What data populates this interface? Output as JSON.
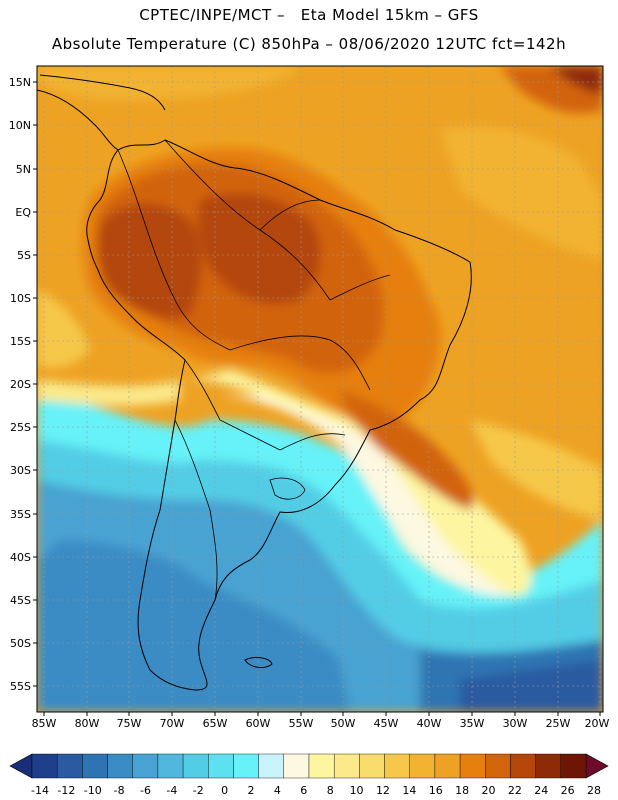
{
  "header": {
    "line1": "CPTEC/INPE/MCT –   Eta Model 15km – GFS",
    "line2": "Absolute Temperature (C) 850hPa – 08/06/2020 12UTC fct=142h"
  },
  "map": {
    "lat_labels": [
      "15N",
      "10N",
      "5N",
      "EQ",
      "5S",
      "10S",
      "15S",
      "20S",
      "25S",
      "30S",
      "35S",
      "40S",
      "45S",
      "50S",
      "55S"
    ],
    "lon_labels": [
      "85W",
      "80W",
      "75W",
      "70W",
      "65W",
      "60W",
      "55W",
      "50W",
      "45W",
      "40W",
      "35W",
      "30W",
      "25W",
      "20W"
    ]
  },
  "colorbar": {
    "labels": [
      "-14",
      "-12",
      "-10",
      "-8",
      "-6",
      "-4",
      "-2",
      "0",
      "2",
      "4",
      "6",
      "8",
      "10",
      "12",
      "14",
      "16",
      "18",
      "20",
      "22",
      "24",
      "26",
      "28"
    ],
    "colors": [
      "#1f3f8c",
      "#2a5aa0",
      "#2f74b2",
      "#3b8cc4",
      "#49a3d2",
      "#4fb8dc",
      "#52cde6",
      "#5de0ef",
      "#66f2f8",
      "#c8f3fb",
      "#fdf8e1",
      "#fdf5a0",
      "#fbe98a",
      "#f9dd6c",
      "#f6c84a",
      "#f2b331",
      "#eea223",
      "#e67f0c",
      "#d2640b",
      "#b4460a",
      "#8e2a08",
      "#6e1606"
    ],
    "low_arrow_color": "#1a2e78",
    "high_arrow_color": "#6e0a2a"
  }
}
